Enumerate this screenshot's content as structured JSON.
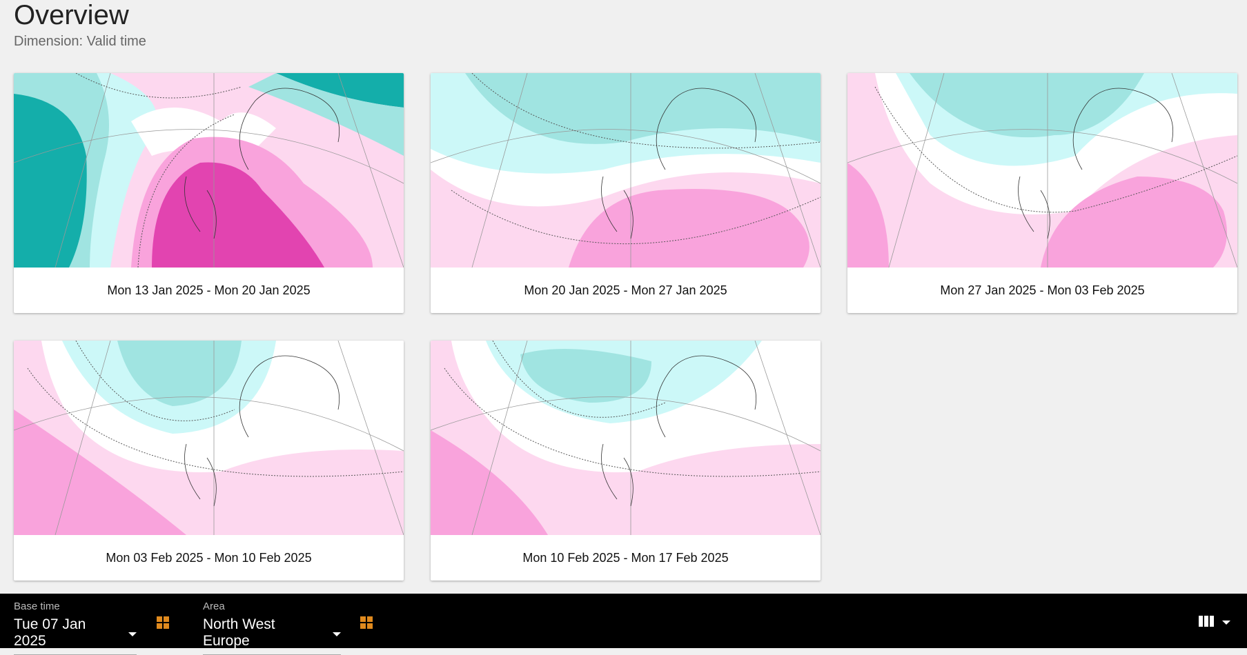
{
  "header": {
    "title": "Overview",
    "subtitle": "Dimension: Valid time"
  },
  "colors": {
    "teal_dark": "#14aeaa",
    "teal_mid": "#a0e4e1",
    "teal_light": "#ccf8f8",
    "pink_light": "#fdd8ef",
    "pink_mid": "#f9a3dc",
    "pink_dark": "#e244b0",
    "accent": "#e08a1e"
  },
  "cards": [
    {
      "label": "Mon 13 Jan 2025 - Mon 20 Jan 2025"
    },
    {
      "label": "Mon 20 Jan 2025 - Mon 27 Jan 2025"
    },
    {
      "label": "Mon 27 Jan 2025 - Mon 03 Feb 2025"
    },
    {
      "label": "Mon 03 Feb 2025 - Mon 10 Feb 2025"
    },
    {
      "label": "Mon 10 Feb 2025 - Mon 17 Feb 2025"
    }
  ],
  "toolbar": {
    "base_time": {
      "label": "Base time",
      "value": "Tue 07 Jan 2025"
    },
    "area": {
      "label": "Area",
      "value": "North West Europe"
    },
    "icons": [
      "grid-icon",
      "grid-icon",
      "columns-icon",
      "chevron-down-icon"
    ]
  }
}
